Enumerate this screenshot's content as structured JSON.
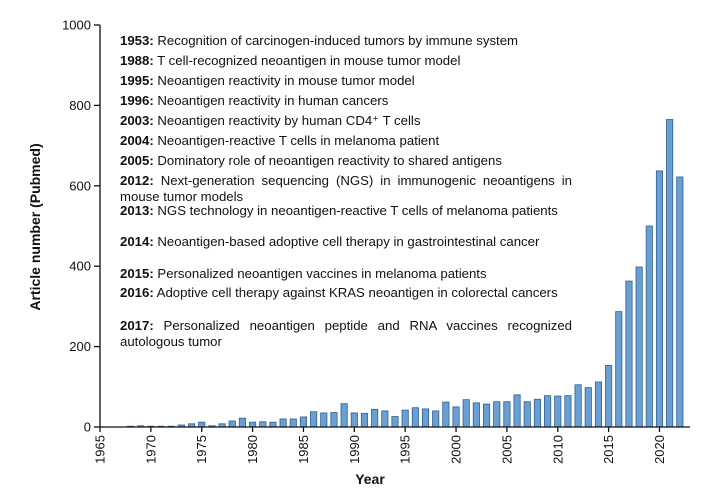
{
  "chart_data": {
    "type": "bar",
    "title": "",
    "xlabel": "Year",
    "ylabel": "Article number (Pubmed)",
    "xlim": [
      1965,
      2023
    ],
    "ylim": [
      0,
      1000
    ],
    "yticks": [
      0,
      200,
      400,
      600,
      800,
      1000
    ],
    "xticks": [
      1965,
      1970,
      1975,
      1980,
      1985,
      1990,
      1995,
      2000,
      2005,
      2010,
      2015,
      2020
    ],
    "bar_color": "#6a9fd4",
    "bar_edge": "#2f5f95",
    "x": [
      1965,
      1966,
      1967,
      1968,
      1969,
      1970,
      1971,
      1972,
      1973,
      1974,
      1975,
      1976,
      1977,
      1978,
      1979,
      1980,
      1981,
      1982,
      1983,
      1984,
      1985,
      1986,
      1987,
      1988,
      1989,
      1990,
      1991,
      1992,
      1993,
      1994,
      1995,
      1996,
      1997,
      1998,
      1999,
      2000,
      2001,
      2002,
      2003,
      2004,
      2005,
      2006,
      2007,
      2008,
      2009,
      2010,
      2011,
      2012,
      2013,
      2014,
      2015,
      2016,
      2017,
      2018,
      2019,
      2020,
      2021,
      2022
    ],
    "values": [
      0,
      0,
      0,
      2,
      3,
      2,
      2,
      2,
      5,
      8,
      12,
      3,
      8,
      15,
      22,
      12,
      13,
      12,
      20,
      20,
      25,
      38,
      35,
      36,
      58,
      35,
      34,
      44,
      40,
      26,
      42,
      48,
      45,
      40,
      62,
      50,
      68,
      60,
      57,
      63,
      63,
      80,
      63,
      69,
      78,
      77,
      78,
      105,
      98,
      112,
      153,
      287,
      363,
      398,
      500,
      637,
      765,
      622
    ]
  },
  "milestones": [
    {
      "year": "1953:",
      "text": "Recognition of carcinogen-induced tumors by immune system"
    },
    {
      "year": "1988:",
      "text": "T cell-recognized neoantigen in mouse tumor model"
    },
    {
      "year": "1995:",
      "text": "Neoantigen reactivity in mouse tumor model"
    },
    {
      "year": "1996:",
      "text": "Neoantigen reactivity in human cancers"
    },
    {
      "year": "2003:",
      "text": "Neoantigen reactivity by human CD4⁺ T cells"
    },
    {
      "year": "2004:",
      "text": "Neoantigen-reactive T cells in melanoma patient"
    },
    {
      "year": "2005:",
      "text": "Dominatory role of neoantigen reactivity to shared antigens"
    },
    {
      "year": "2012:",
      "text": "Next-generation sequencing (NGS) in immunogenic neoantigens in mouse tumor models"
    },
    {
      "year": "2013:",
      "text": "NGS technology in neoantigen-reactive T cells of melanoma patients"
    },
    {
      "year": "2014:",
      "text": "Neoantigen-based adoptive cell therapy  in gastrointestinal cancer"
    },
    {
      "year": "2015:",
      "text": "Personalized neoantigen vaccines in melanoma patients"
    },
    {
      "year": "2016:",
      "text": "Adoptive cell therapy against KRAS neoantigen in colorectal cancers"
    },
    {
      "year": "2017:",
      "text": "Personalized neoantigen peptide and RNA vaccines recognized autologous tumor"
    }
  ]
}
